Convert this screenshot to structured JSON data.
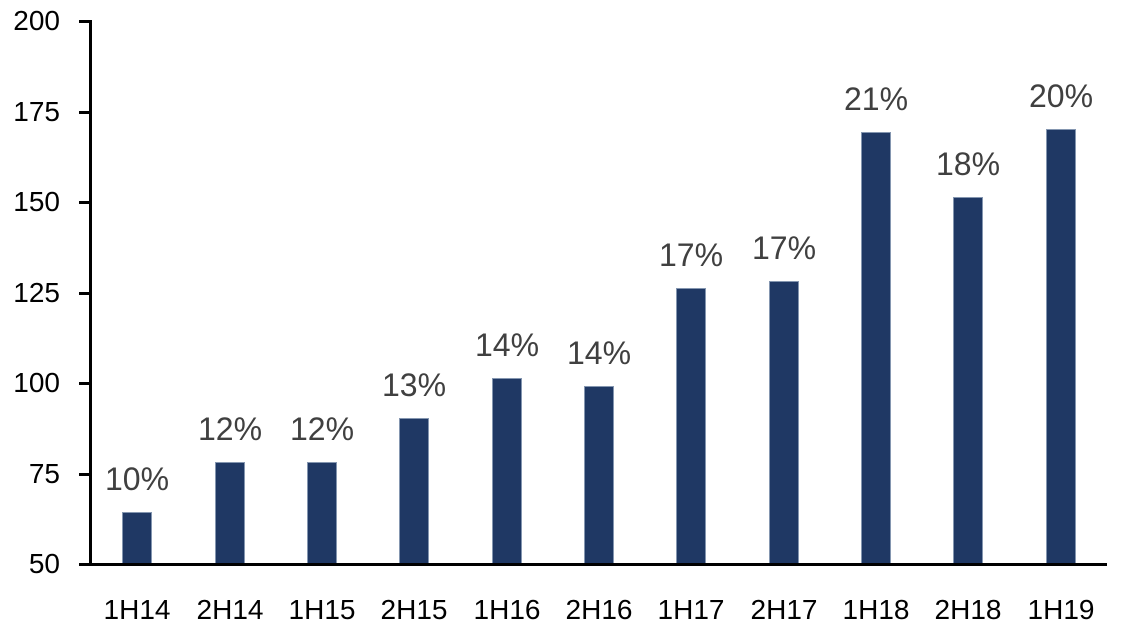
{
  "colors": {
    "bar_fill": "#1F3864",
    "bar_border": "#8496B0",
    "data_label": "#404040",
    "axis_text": "#000000",
    "axis_line": "#000000",
    "background": "#FFFFFF"
  },
  "chart_data": {
    "type": "bar",
    "title": "",
    "xlabel": "",
    "ylabel": "",
    "categories": [
      "1H14",
      "2H14",
      "1H15",
      "2H15",
      "1H16",
      "2H16",
      "1H17",
      "2H17",
      "1H18",
      "2H18",
      "1H19"
    ],
    "values": [
      64,
      78,
      78,
      90,
      101,
      99,
      126,
      128,
      169,
      151,
      170
    ],
    "bar_labels": [
      "10%",
      "12%",
      "12%",
      "13%",
      "14%",
      "14%",
      "17%",
      "17%",
      "21%",
      "18%",
      "20%"
    ],
    "ylim": [
      50,
      200
    ],
    "yticks": [
      50,
      75,
      100,
      125,
      150,
      175,
      200
    ],
    "grid": false,
    "legend": false
  }
}
